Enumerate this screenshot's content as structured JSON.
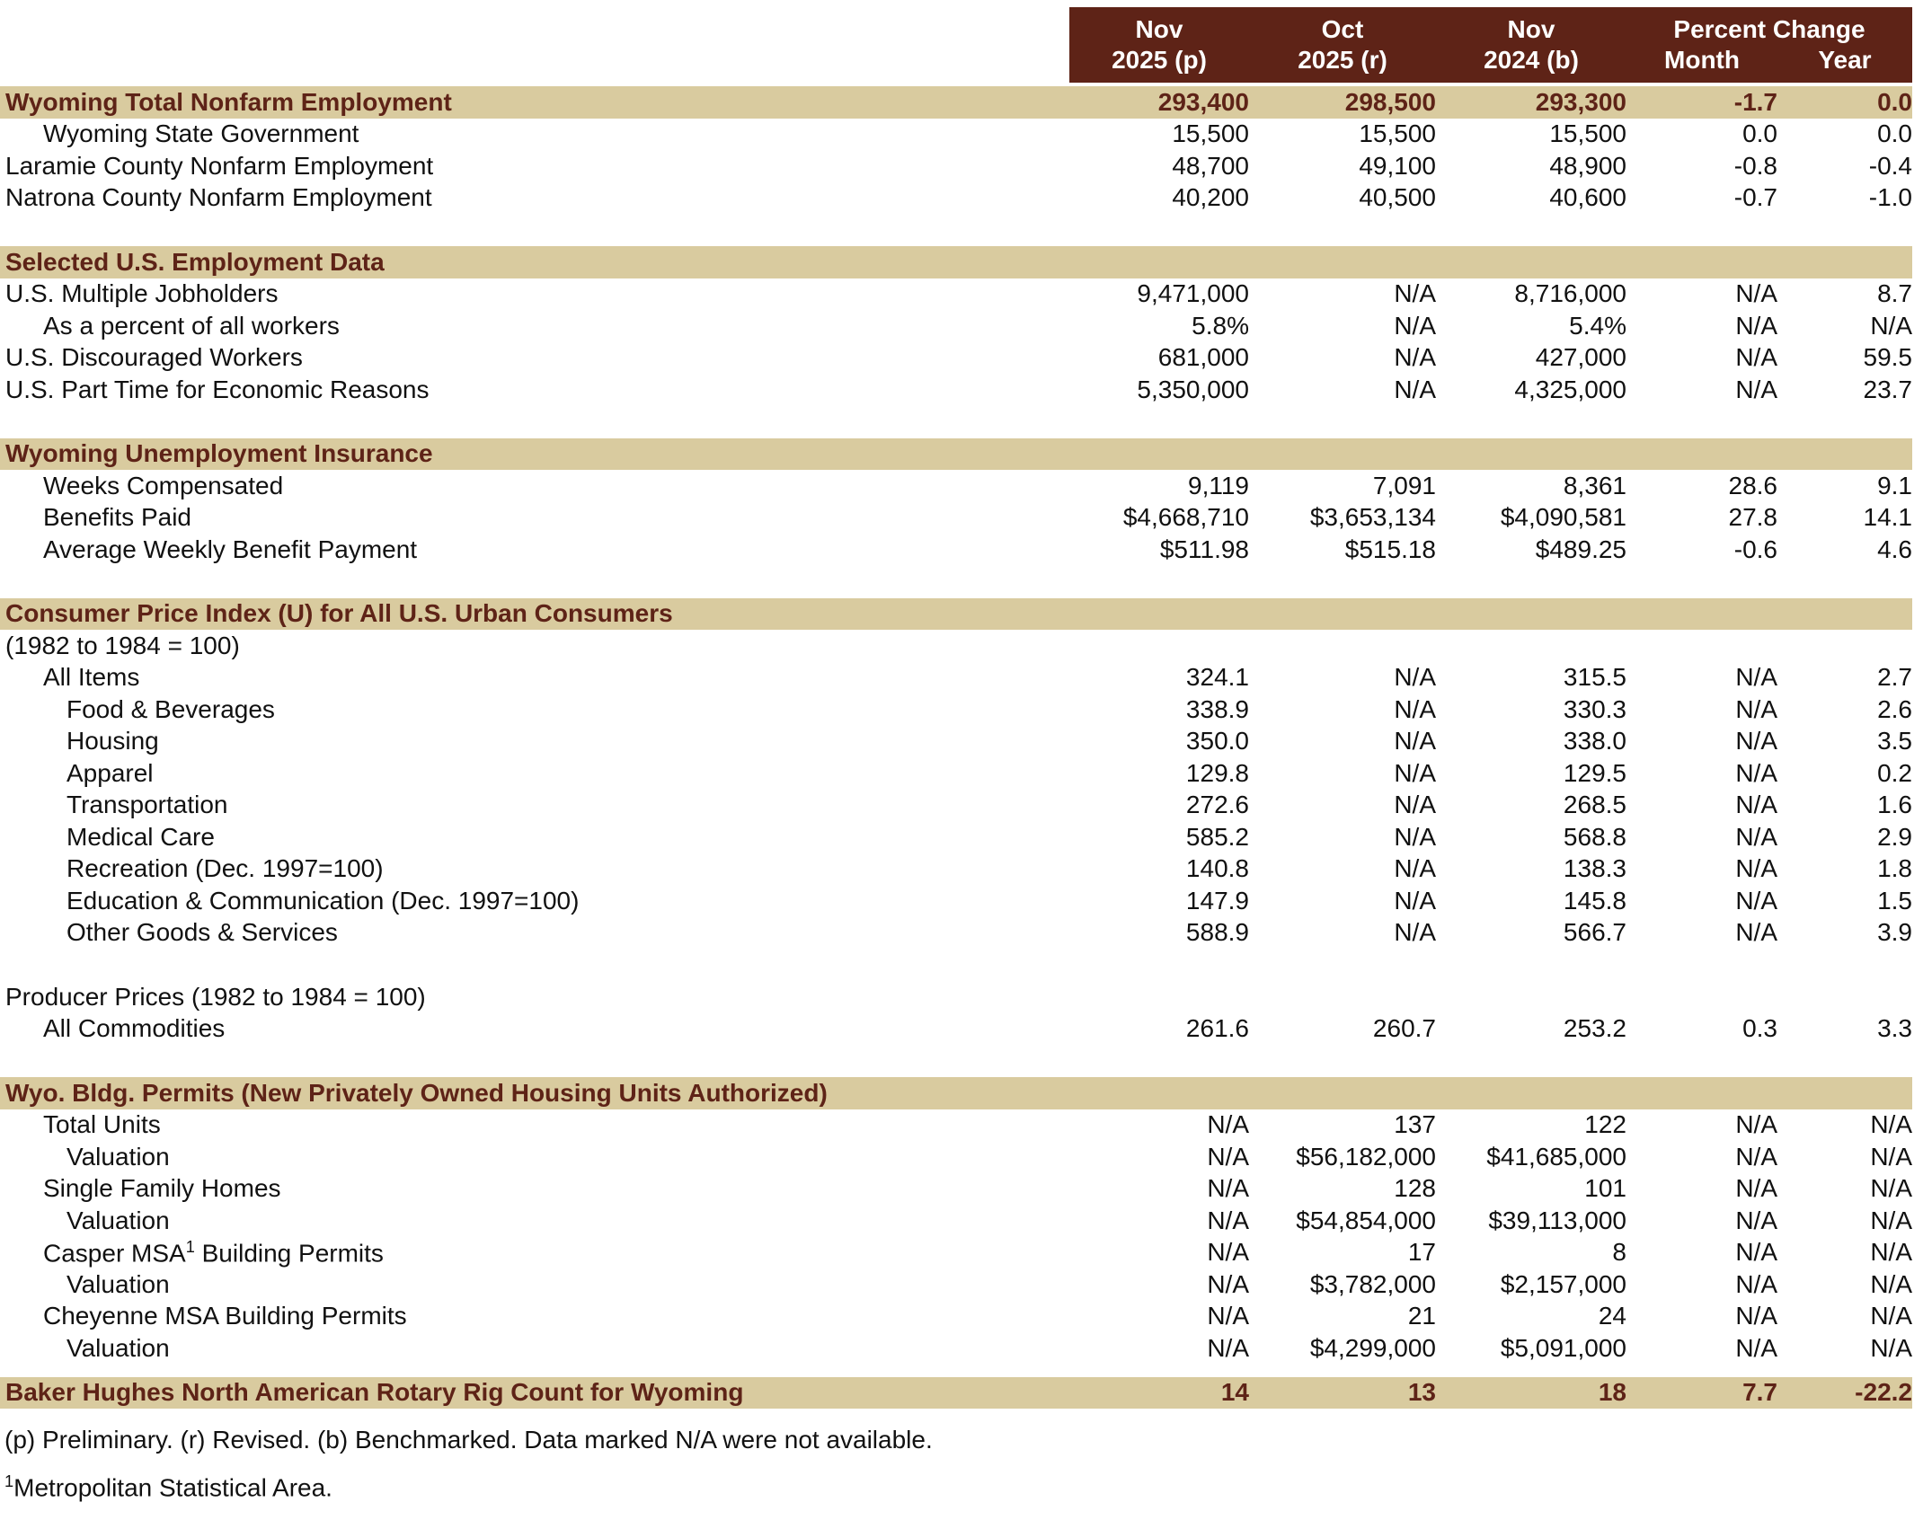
{
  "colors": {
    "maroon": "#5E2317",
    "tan": "#D9CB9F"
  },
  "header": {
    "columns": [
      {
        "line1": "Nov",
        "line2": "2025 (p)"
      },
      {
        "line1": "Oct",
        "line2": "2025 (r)"
      },
      {
        "line1": "Nov",
        "line2": "2024 (b)"
      }
    ],
    "percent_change": {
      "label": "Percent Change",
      "sub": [
        "Month",
        "Year"
      ]
    }
  },
  "rows": [
    {
      "type": "section-data",
      "indent": 0,
      "label": "Wyoming Total Nonfarm Employment",
      "values": [
        "293,400",
        "298,500",
        "293,300",
        "-1.7",
        "0.0"
      ]
    },
    {
      "type": "data",
      "indent": 1,
      "label": "Wyoming State Government",
      "values": [
        "15,500",
        "15,500",
        "15,500",
        "0.0",
        "0.0"
      ]
    },
    {
      "type": "data",
      "indent": 0,
      "label": "Laramie County Nonfarm Employment",
      "values": [
        "48,700",
        "49,100",
        "48,900",
        "-0.8",
        "-0.4"
      ]
    },
    {
      "type": "data",
      "indent": 0,
      "label": "Natrona County Nonfarm Employment",
      "values": [
        "40,200",
        "40,500",
        "40,600",
        "-0.7",
        "-1.0"
      ]
    },
    {
      "type": "spacer"
    },
    {
      "type": "section",
      "indent": 0,
      "label": "Selected U.S. Employment Data",
      "values": [
        "",
        "",
        "",
        "",
        ""
      ]
    },
    {
      "type": "data",
      "indent": 0,
      "label": "U.S. Multiple Jobholders",
      "values": [
        "9,471,000",
        "N/A",
        "8,716,000",
        "N/A",
        "8.7"
      ]
    },
    {
      "type": "data",
      "indent": 1,
      "label": "As a percent of all workers",
      "values": [
        "5.8%",
        "N/A",
        "5.4%",
        "N/A",
        "N/A"
      ]
    },
    {
      "type": "data",
      "indent": 0,
      "label": "U.S. Discouraged Workers",
      "values": [
        "681,000",
        "N/A",
        "427,000",
        "N/A",
        "59.5"
      ]
    },
    {
      "type": "data",
      "indent": 0,
      "label": "U.S. Part Time for Economic Reasons",
      "values": [
        "5,350,000",
        "N/A",
        "4,325,000",
        "N/A",
        "23.7"
      ]
    },
    {
      "type": "spacer"
    },
    {
      "type": "section",
      "indent": 0,
      "label": "Wyoming Unemployment Insurance",
      "values": [
        "",
        "",
        "",
        "",
        ""
      ]
    },
    {
      "type": "data",
      "indent": 1,
      "label": "Weeks Compensated",
      "values": [
        "9,119",
        "7,091",
        "8,361",
        "28.6",
        "9.1"
      ]
    },
    {
      "type": "data",
      "indent": 1,
      "label": "Benefits Paid",
      "values": [
        "$4,668,710",
        "$3,653,134",
        "$4,090,581",
        "27.8",
        "14.1"
      ]
    },
    {
      "type": "data",
      "indent": 1,
      "label": "Average Weekly Benefit Payment",
      "values": [
        "$511.98",
        "$515.18",
        "$489.25",
        "-0.6",
        "4.6"
      ]
    },
    {
      "type": "spacer"
    },
    {
      "type": "section",
      "indent": 0,
      "label": "Consumer Price Index (U) for All U.S. Urban Consumers",
      "values": [
        "",
        "",
        "",
        "",
        ""
      ]
    },
    {
      "type": "plain",
      "indent": 0,
      "label": "(1982 to 1984 = 100)",
      "values": [
        "",
        "",
        "",
        "",
        ""
      ]
    },
    {
      "type": "data",
      "indent": 1,
      "label": "All Items",
      "values": [
        "324.1",
        "N/A",
        "315.5",
        "N/A",
        "2.7"
      ]
    },
    {
      "type": "data",
      "indent": 2,
      "label": "Food & Beverages",
      "values": [
        "338.9",
        "N/A",
        "330.3",
        "N/A",
        "2.6"
      ]
    },
    {
      "type": "data",
      "indent": 2,
      "label": "Housing",
      "values": [
        "350.0",
        "N/A",
        "338.0",
        "N/A",
        "3.5"
      ]
    },
    {
      "type": "data",
      "indent": 2,
      "label": "Apparel",
      "values": [
        "129.8",
        "N/A",
        "129.5",
        "N/A",
        "0.2"
      ]
    },
    {
      "type": "data",
      "indent": 2,
      "label": "Transportation",
      "values": [
        "272.6",
        "N/A",
        "268.5",
        "N/A",
        "1.6"
      ]
    },
    {
      "type": "data",
      "indent": 2,
      "label": "Medical Care",
      "values": [
        "585.2",
        "N/A",
        "568.8",
        "N/A",
        "2.9"
      ]
    },
    {
      "type": "data",
      "indent": 2,
      "label": "Recreation (Dec. 1997=100)",
      "values": [
        "140.8",
        "N/A",
        "138.3",
        "N/A",
        "1.8"
      ]
    },
    {
      "type": "data",
      "indent": 2,
      "label": "Education & Communication (Dec. 1997=100)",
      "values": [
        "147.9",
        "N/A",
        "145.8",
        "N/A",
        "1.5"
      ]
    },
    {
      "type": "data",
      "indent": 2,
      "label": "Other Goods & Services",
      "values": [
        "588.9",
        "N/A",
        "566.7",
        "N/A",
        "3.9"
      ]
    },
    {
      "type": "spacer"
    },
    {
      "type": "plain",
      "indent": 0,
      "label": "Producer Prices (1982 to 1984 = 100)",
      "values": [
        "",
        "",
        "",
        "",
        ""
      ]
    },
    {
      "type": "data",
      "indent": 1,
      "label": "All Commodities",
      "values": [
        "261.6",
        "260.7",
        "253.2",
        "0.3",
        "3.3"
      ]
    },
    {
      "type": "spacer"
    },
    {
      "type": "section",
      "indent": 0,
      "label": "Wyo. Bldg. Permits (New Privately Owned Housing Units Authorized)",
      "values": [
        "",
        "",
        "",
        "",
        ""
      ]
    },
    {
      "type": "data",
      "indent": 1,
      "label": "Total Units",
      "values": [
        "N/A",
        "137",
        "122",
        "N/A",
        "N/A"
      ]
    },
    {
      "type": "data",
      "indent": 2,
      "label": "Valuation",
      "values": [
        "N/A",
        "$56,182,000",
        "$41,685,000",
        "N/A",
        "N/A"
      ]
    },
    {
      "type": "data",
      "indent": 1,
      "label": "Single Family Homes",
      "values": [
        "N/A",
        "128",
        "101",
        "N/A",
        "N/A"
      ]
    },
    {
      "type": "data",
      "indent": 2,
      "label": "Valuation",
      "values": [
        "N/A",
        "$54,854,000",
        "$39,113,000",
        "N/A",
        "N/A"
      ]
    },
    {
      "type": "data",
      "indent": 1,
      "label_pre": "Casper MSA",
      "sup": "1",
      "label_post": " Building Permits",
      "values": [
        "N/A",
        "17",
        "8",
        "N/A",
        "N/A"
      ]
    },
    {
      "type": "data",
      "indent": 2,
      "label": "Valuation",
      "values": [
        "N/A",
        "$3,782,000",
        "$2,157,000",
        "N/A",
        "N/A"
      ]
    },
    {
      "type": "data",
      "indent": 1,
      "label": "Cheyenne MSA Building Permits",
      "values": [
        "N/A",
        "21",
        "24",
        "N/A",
        "N/A"
      ]
    },
    {
      "type": "data",
      "indent": 2,
      "label": "Valuation",
      "values": [
        "N/A",
        "$4,299,000",
        "$5,091,000",
        "N/A",
        "N/A"
      ]
    },
    {
      "type": "spacer",
      "h": 14
    },
    {
      "type": "section-data",
      "indent": 0,
      "label": "Baker Hughes North American Rotary Rig Count for Wyoming",
      "values": [
        "14",
        "13",
        "18",
        "7.7",
        "-22.2"
      ]
    }
  ],
  "footnotes": [
    {
      "sup": "",
      "text": "(p) Preliminary. (r) Revised. (b) Benchmarked. Data marked N/A were not available."
    },
    {
      "sup": "1",
      "text": "Metropolitan Statistical Area."
    }
  ]
}
